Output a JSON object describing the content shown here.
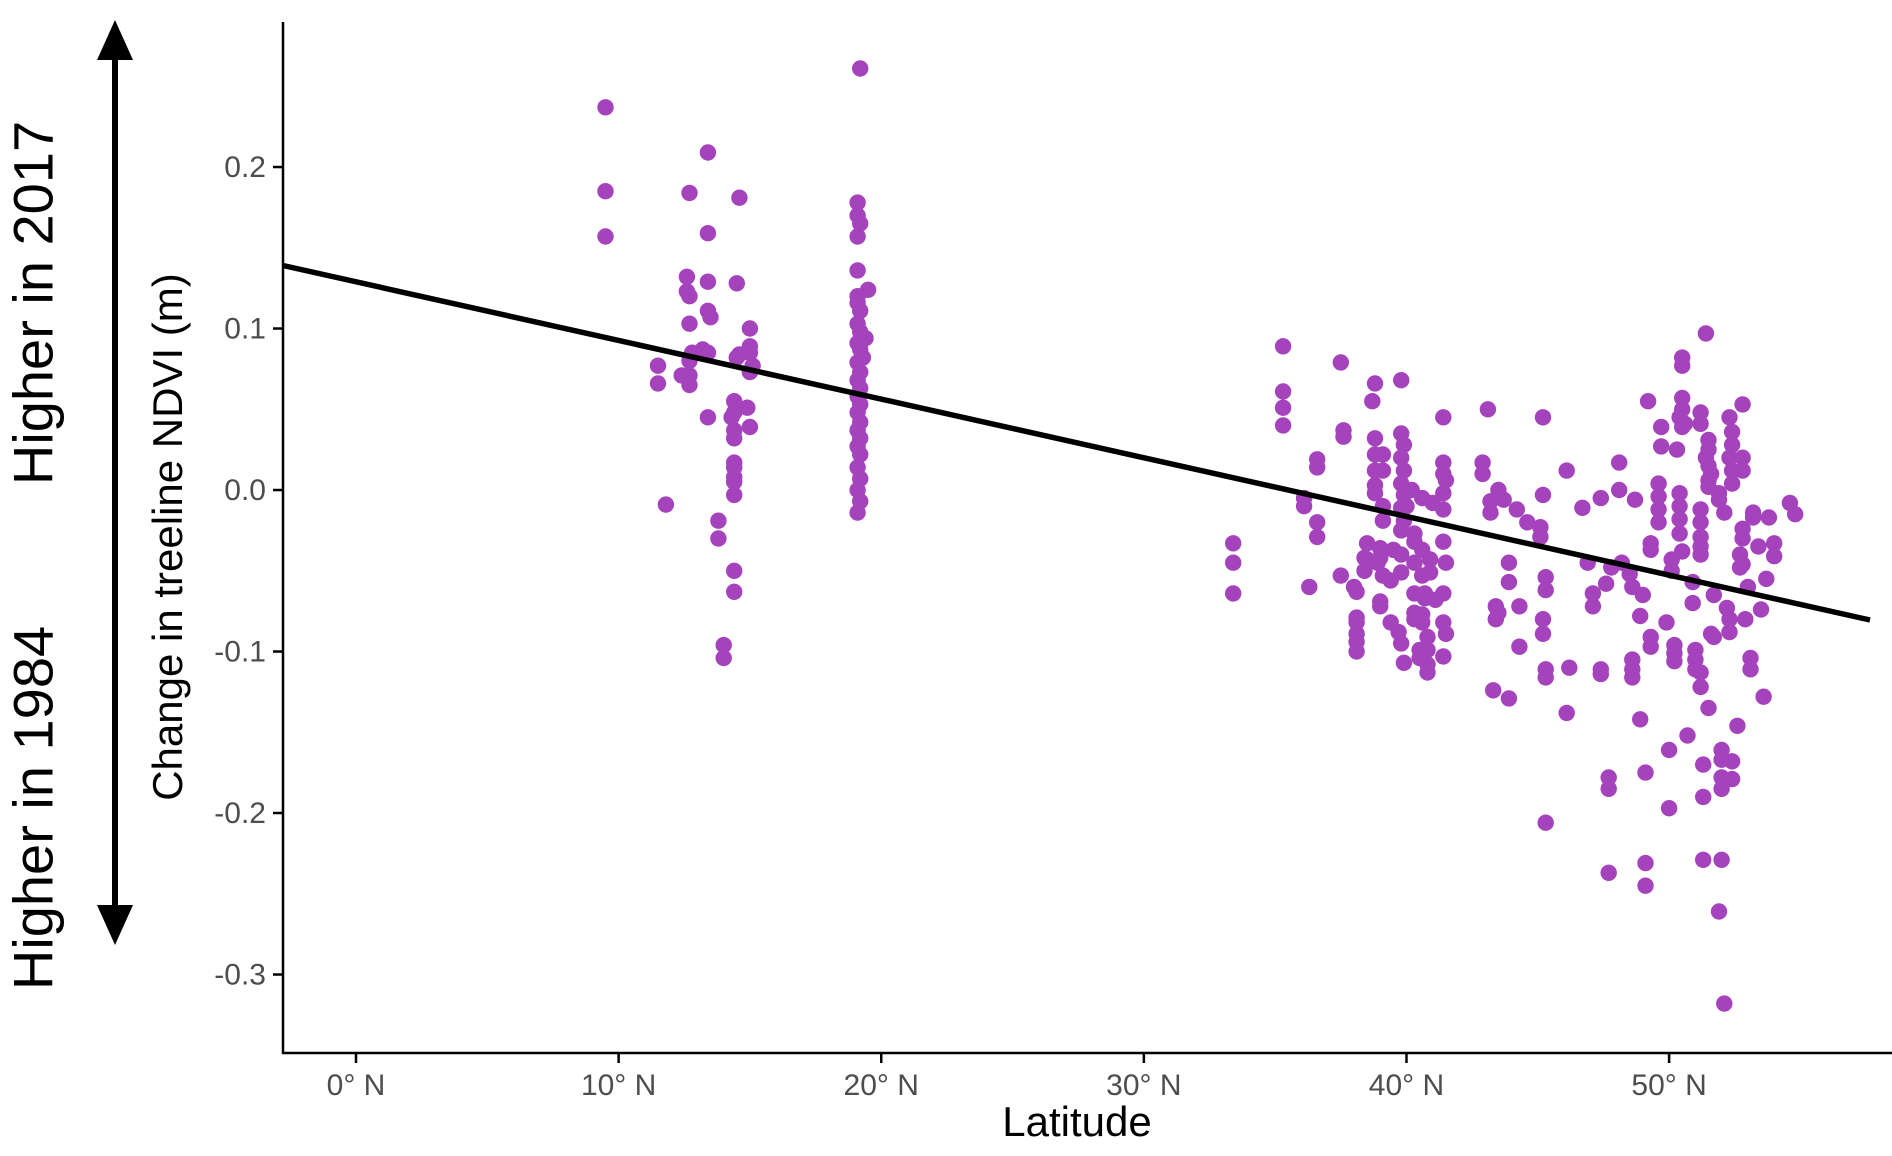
{
  "figure": {
    "left_annotation": {
      "top_label": "Higher in 2017",
      "bottom_label": "Higher in 1984"
    },
    "colors": {
      "point": "#A543BD",
      "trend_line": "#000000",
      "axis_line": "#000000",
      "tick_label": "#4D4D4D",
      "background": "#FFFFFF"
    }
  },
  "chart_data": {
    "type": "scatter",
    "title": "",
    "xlabel": "Latitude",
    "ylabel": "Change in treeline NDVI (m)",
    "legend": null,
    "grid": false,
    "xlim": [
      -2.78,
      57.84
    ],
    "ylim": [
      -0.3486,
      0.2898
    ],
    "x_ticks": [
      {
        "value": 0,
        "label": "0° N"
      },
      {
        "value": 10,
        "label": "10° N"
      },
      {
        "value": 20,
        "label": "20° N"
      },
      {
        "value": 30,
        "label": "30° N"
      },
      {
        "value": 40,
        "label": "40° N"
      },
      {
        "value": 50,
        "label": "50° N"
      }
    ],
    "y_ticks": [
      {
        "value": 0.2,
        "label": "0.2"
      },
      {
        "value": 0.1,
        "label": "0.1"
      },
      {
        "value": 0.0,
        "label": "0.0"
      },
      {
        "value": -0.1,
        "label": "-0.1"
      },
      {
        "value": -0.2,
        "label": "-0.2"
      },
      {
        "value": -0.3,
        "label": "-0.3"
      }
    ],
    "trend_line": {
      "x1": -2.78,
      "y1": 0.139,
      "x2": 57.65,
      "y2": -0.0805
    },
    "point_radius_px": 8.2,
    "points": [
      [
        9.5,
        0.237
      ],
      [
        9.5,
        0.185
      ],
      [
        9.5,
        0.157
      ],
      [
        13.4,
        0.209
      ],
      [
        12.7,
        0.184
      ],
      [
        14.6,
        0.181
      ],
      [
        13.4,
        0.159
      ],
      [
        12.6,
        0.132
      ],
      [
        13.4,
        0.129
      ],
      [
        14.5,
        0.128
      ],
      [
        12.6,
        0.123
      ],
      [
        12.7,
        0.12
      ],
      [
        13.4,
        0.111
      ],
      [
        13.5,
        0.107
      ],
      [
        12.7,
        0.103
      ],
      [
        15.0,
        0.1
      ],
      [
        15.0,
        0.089
      ],
      [
        12.8,
        0.085
      ],
      [
        13.4,
        0.085
      ],
      [
        14.6,
        0.084
      ],
      [
        12.4,
        0.071
      ],
      [
        11.5,
        0.077
      ],
      [
        11.5,
        0.066
      ],
      [
        12.7,
        0.08
      ],
      [
        12.7,
        0.071
      ],
      [
        12.7,
        0.065
      ],
      [
        13.2,
        0.087
      ],
      [
        14.5,
        0.082
      ],
      [
        15.0,
        0.085
      ],
      [
        15.1,
        0.077
      ],
      [
        15.0,
        0.073
      ],
      [
        13.4,
        0.045
      ],
      [
        14.4,
        0.055
      ],
      [
        14.4,
        0.048
      ],
      [
        14.3,
        0.045
      ],
      [
        14.9,
        0.051
      ],
      [
        15.0,
        0.039
      ],
      [
        14.4,
        0.037
      ],
      [
        14.4,
        0.032
      ],
      [
        14.4,
        0.017
      ],
      [
        14.4,
        0.014
      ],
      [
        14.4,
        0.008
      ],
      [
        14.4,
        0.005
      ],
      [
        14.4,
        -0.003
      ],
      [
        11.8,
        -0.009
      ],
      [
        13.8,
        -0.019
      ],
      [
        13.8,
        -0.03
      ],
      [
        14.4,
        -0.05
      ],
      [
        14.4,
        -0.063
      ],
      [
        14.0,
        -0.096
      ],
      [
        14.0,
        -0.104
      ],
      [
        19.2,
        0.261
      ],
      [
        19.1,
        0.178
      ],
      [
        19.1,
        0.17
      ],
      [
        19.2,
        0.165
      ],
      [
        19.1,
        0.157
      ],
      [
        19.1,
        0.136
      ],
      [
        19.5,
        0.124
      ],
      [
        19.1,
        0.12
      ],
      [
        19.1,
        0.116
      ],
      [
        19.2,
        0.111
      ],
      [
        19.1,
        0.103
      ],
      [
        19.2,
        0.098
      ],
      [
        19.4,
        0.094
      ],
      [
        19.1,
        0.091
      ],
      [
        19.2,
        0.087
      ],
      [
        19.3,
        0.082
      ],
      [
        19.1,
        0.079
      ],
      [
        19.2,
        0.073
      ],
      [
        19.1,
        0.068
      ],
      [
        19.2,
        0.063
      ],
      [
        19.1,
        0.058
      ],
      [
        19.2,
        0.053
      ],
      [
        19.1,
        0.048
      ],
      [
        19.2,
        0.042
      ],
      [
        19.1,
        0.037
      ],
      [
        19.2,
        0.032
      ],
      [
        19.1,
        0.027
      ],
      [
        19.2,
        0.022
      ],
      [
        19.1,
        0.014
      ],
      [
        19.2,
        0.007
      ],
      [
        19.1,
        0.0
      ],
      [
        19.2,
        -0.007
      ],
      [
        19.1,
        -0.014
      ],
      [
        33.4,
        -0.033
      ],
      [
        33.4,
        -0.045
      ],
      [
        33.4,
        -0.064
      ],
      [
        35.3,
        0.089
      ],
      [
        35.3,
        0.061
      ],
      [
        35.3,
        0.051
      ],
      [
        35.3,
        0.04
      ],
      [
        36.6,
        0.019
      ],
      [
        36.6,
        0.014
      ],
      [
        36.1,
        -0.005
      ],
      [
        36.1,
        -0.01
      ],
      [
        36.6,
        -0.02
      ],
      [
        36.6,
        -0.029
      ],
      [
        37.5,
        0.079
      ],
      [
        37.6,
        0.037
      ],
      [
        37.6,
        0.033
      ],
      [
        37.5,
        -0.053
      ],
      [
        38.0,
        -0.06
      ],
      [
        38.1,
        -0.079
      ],
      [
        38.1,
        -0.089
      ],
      [
        38.1,
        -0.1
      ],
      [
        38.8,
        0.066
      ],
      [
        38.7,
        0.055
      ],
      [
        38.8,
        0.032
      ],
      [
        38.8,
        0.022
      ],
      [
        38.8,
        0.012
      ],
      [
        38.8,
        0.003
      ],
      [
        38.8,
        -0.002
      ],
      [
        39.1,
        0.022
      ],
      [
        39.1,
        0.012
      ],
      [
        39.1,
        -0.01
      ],
      [
        39.1,
        -0.019
      ],
      [
        38.5,
        -0.033
      ],
      [
        38.5,
        -0.043
      ],
      [
        38.9,
        -0.045
      ],
      [
        39.5,
        -0.037
      ],
      [
        36.3,
        -0.06
      ],
      [
        38.1,
        -0.063
      ],
      [
        38.4,
        -0.042
      ],
      [
        38.4,
        -0.05
      ],
      [
        39.0,
        -0.036
      ],
      [
        39.0,
        -0.042
      ],
      [
        39.1,
        -0.053
      ],
      [
        39.4,
        -0.056
      ],
      [
        39.0,
        -0.069
      ],
      [
        39.0,
        -0.072
      ],
      [
        38.1,
        -0.082
      ],
      [
        38.1,
        -0.094
      ],
      [
        39.4,
        -0.082
      ],
      [
        39.8,
        0.068
      ],
      [
        39.8,
        0.035
      ],
      [
        39.9,
        0.028
      ],
      [
        39.8,
        0.02
      ],
      [
        39.9,
        0.012
      ],
      [
        39.8,
        0.004
      ],
      [
        39.9,
        -0.003
      ],
      [
        39.8,
        -0.011
      ],
      [
        39.9,
        -0.019
      ],
      [
        39.8,
        -0.025
      ],
      [
        40.0,
        -0.01
      ],
      [
        39.8,
        -0.04
      ],
      [
        39.8,
        -0.051
      ],
      [
        40.3,
        -0.045
      ],
      [
        40.3,
        -0.064
      ],
      [
        39.7,
        -0.088
      ],
      [
        39.8,
        -0.095
      ],
      [
        39.9,
        -0.107
      ],
      [
        41.4,
        0.045
      ],
      [
        41.4,
        0.017
      ],
      [
        41.4,
        0.01
      ],
      [
        41.5,
        0.006
      ],
      [
        41.4,
        -0.002
      ],
      [
        41.4,
        -0.012
      ],
      [
        41.4,
        -0.032
      ],
      [
        41.5,
        -0.045
      ],
      [
        41.4,
        -0.064
      ],
      [
        41.4,
        -0.082
      ],
      [
        41.5,
        -0.089
      ],
      [
        41.4,
        -0.103
      ],
      [
        40.2,
        0.0
      ],
      [
        40.6,
        -0.005
      ],
      [
        41.0,
        -0.008
      ],
      [
        40.3,
        -0.027
      ],
      [
        40.3,
        -0.032
      ],
      [
        40.9,
        -0.043
      ],
      [
        40.9,
        -0.051
      ],
      [
        40.3,
        -0.076
      ],
      [
        40.3,
        -0.08
      ],
      [
        40.8,
        -0.091
      ],
      [
        40.8,
        -0.099
      ],
      [
        40.6,
        -0.037
      ],
      [
        40.6,
        -0.053
      ],
      [
        40.7,
        -0.064
      ],
      [
        40.7,
        -0.067
      ],
      [
        41.1,
        -0.068
      ],
      [
        40.6,
        -0.077
      ],
      [
        40.6,
        -0.082
      ],
      [
        40.5,
        -0.099
      ],
      [
        40.5,
        -0.104
      ],
      [
        40.8,
        -0.108
      ],
      [
        40.8,
        -0.113
      ],
      [
        42.9,
        0.017
      ],
      [
        42.9,
        0.01
      ],
      [
        43.1,
        0.05
      ],
      [
        43.2,
        -0.007
      ],
      [
        43.2,
        -0.014
      ],
      [
        43.5,
        0.0
      ],
      [
        43.7,
        -0.006
      ],
      [
        44.2,
        -0.012
      ],
      [
        44.6,
        -0.02
      ],
      [
        43.9,
        -0.045
      ],
      [
        43.9,
        -0.057
      ],
      [
        43.4,
        -0.072
      ],
      [
        43.4,
        -0.08
      ],
      [
        44.3,
        -0.072
      ],
      [
        44.3,
        -0.097
      ],
      [
        45.2,
        0.045
      ],
      [
        45.2,
        -0.003
      ],
      [
        45.1,
        -0.023
      ],
      [
        45.1,
        -0.029
      ],
      [
        45.3,
        -0.054
      ],
      [
        45.3,
        -0.062
      ],
      [
        45.2,
        -0.08
      ],
      [
        45.2,
        -0.089
      ],
      [
        46.1,
        0.012
      ],
      [
        46.7,
        -0.011
      ],
      [
        46.9,
        -0.045
      ],
      [
        47.1,
        -0.064
      ],
      [
        47.1,
        -0.072
      ],
      [
        43.3,
        -0.124
      ],
      [
        43.9,
        -0.129
      ],
      [
        45.3,
        -0.111
      ],
      [
        45.3,
        -0.116
      ],
      [
        46.2,
        -0.11
      ],
      [
        43.5,
        -0.076
      ],
      [
        46.1,
        -0.138
      ],
      [
        45.3,
        -0.206
      ],
      [
        51.4,
        0.097
      ],
      [
        50.5,
        0.082
      ],
      [
        50.5,
        0.077
      ],
      [
        49.2,
        0.055
      ],
      [
        50.5,
        0.057
      ],
      [
        50.5,
        0.05
      ],
      [
        50.4,
        0.045
      ],
      [
        50.6,
        0.041
      ],
      [
        50.5,
        0.039
      ],
      [
        51.2,
        0.048
      ],
      [
        51.2,
        0.041
      ],
      [
        52.8,
        0.053
      ],
      [
        52.3,
        0.045
      ],
      [
        49.7,
        0.039
      ],
      [
        49.7,
        0.027
      ],
      [
        50.3,
        0.025
      ],
      [
        51.5,
        0.031
      ],
      [
        51.5,
        0.025
      ],
      [
        51.4,
        0.02
      ],
      [
        51.5,
        0.015
      ],
      [
        51.6,
        0.01
      ],
      [
        51.5,
        0.006
      ],
      [
        51.5,
        0.002
      ],
      [
        52.4,
        0.036
      ],
      [
        52.4,
        0.028
      ],
      [
        52.3,
        0.02
      ],
      [
        52.4,
        0.012
      ],
      [
        52.4,
        0.004
      ],
      [
        52.8,
        0.02
      ],
      [
        52.8,
        0.012
      ],
      [
        48.1,
        0.017
      ],
      [
        48.1,
        0.0
      ],
      [
        48.7,
        -0.006
      ],
      [
        47.4,
        -0.005
      ],
      [
        49.6,
        0.004
      ],
      [
        49.6,
        -0.004
      ],
      [
        49.6,
        -0.012
      ],
      [
        49.6,
        -0.02
      ],
      [
        50.4,
        -0.002
      ],
      [
        50.4,
        -0.01
      ],
      [
        50.4,
        -0.018
      ],
      [
        50.4,
        -0.027
      ],
      [
        51.2,
        -0.012
      ],
      [
        51.2,
        -0.02
      ],
      [
        51.2,
        -0.029
      ],
      [
        51.9,
        -0.002
      ],
      [
        51.9,
        -0.006
      ],
      [
        52.1,
        -0.014
      ],
      [
        53.2,
        -0.014
      ],
      [
        53.2,
        -0.017
      ],
      [
        53.8,
        -0.017
      ],
      [
        54.6,
        -0.008
      ],
      [
        54.8,
        -0.015
      ],
      [
        52.8,
        -0.024
      ],
      [
        52.8,
        -0.03
      ],
      [
        51.2,
        -0.035
      ],
      [
        51.2,
        -0.04
      ],
      [
        50.5,
        -0.038
      ],
      [
        49.3,
        -0.033
      ],
      [
        49.3,
        -0.037
      ],
      [
        50.1,
        -0.043
      ],
      [
        50.1,
        -0.05
      ],
      [
        54.0,
        -0.033
      ],
      [
        54.0,
        -0.041
      ],
      [
        52.7,
        -0.04
      ],
      [
        52.7,
        -0.048
      ],
      [
        52.8,
        -0.046
      ],
      [
        48.2,
        -0.045
      ],
      [
        48.5,
        -0.052
      ],
      [
        47.8,
        -0.048
      ],
      [
        53.4,
        -0.035
      ],
      [
        47.6,
        -0.058
      ],
      [
        48.6,
        -0.06
      ],
      [
        49.0,
        -0.065
      ],
      [
        51.7,
        -0.065
      ],
      [
        50.9,
        -0.057
      ],
      [
        53.0,
        -0.06
      ],
      [
        53.5,
        -0.074
      ],
      [
        53.7,
        -0.055
      ],
      [
        52.9,
        -0.08
      ],
      [
        52.3,
        -0.08
      ],
      [
        52.3,
        -0.088
      ],
      [
        51.6,
        -0.089
      ],
      [
        49.3,
        -0.091
      ],
      [
        49.3,
        -0.097
      ],
      [
        50.2,
        -0.096
      ],
      [
        50.2,
        -0.101
      ],
      [
        50.2,
        -0.106
      ],
      [
        51.0,
        -0.099
      ],
      [
        51.0,
        -0.105
      ],
      [
        51.0,
        -0.111
      ],
      [
        51.7,
        -0.091
      ],
      [
        48.6,
        -0.105
      ],
      [
        48.6,
        -0.111
      ],
      [
        48.6,
        -0.116
      ],
      [
        47.4,
        -0.111
      ],
      [
        47.4,
        -0.114
      ],
      [
        53.1,
        -0.104
      ],
      [
        53.1,
        -0.111
      ],
      [
        51.2,
        -0.113
      ],
      [
        51.2,
        -0.122
      ],
      [
        53.6,
        -0.128
      ],
      [
        50.9,
        -0.07
      ],
      [
        52.2,
        -0.073
      ],
      [
        48.9,
        -0.078
      ],
      [
        49.9,
        -0.082
      ],
      [
        47.7,
        -0.178
      ],
      [
        47.7,
        -0.185
      ],
      [
        49.1,
        -0.175
      ],
      [
        50.0,
        -0.161
      ],
      [
        50.0,
        -0.197
      ],
      [
        50.7,
        -0.152
      ],
      [
        51.3,
        -0.17
      ],
      [
        51.3,
        -0.19
      ],
      [
        52.0,
        -0.161
      ],
      [
        52.0,
        -0.167
      ],
      [
        52.0,
        -0.178
      ],
      [
        52.0,
        -0.185
      ],
      [
        52.4,
        -0.168
      ],
      [
        52.4,
        -0.179
      ],
      [
        48.9,
        -0.142
      ],
      [
        51.5,
        -0.135
      ],
      [
        52.6,
        -0.146
      ],
      [
        47.7,
        -0.237
      ],
      [
        49.1,
        -0.231
      ],
      [
        49.1,
        -0.245
      ],
      [
        51.3,
        -0.229
      ],
      [
        52.0,
        -0.229
      ],
      [
        51.9,
        -0.261
      ],
      [
        52.1,
        -0.318
      ]
    ]
  }
}
